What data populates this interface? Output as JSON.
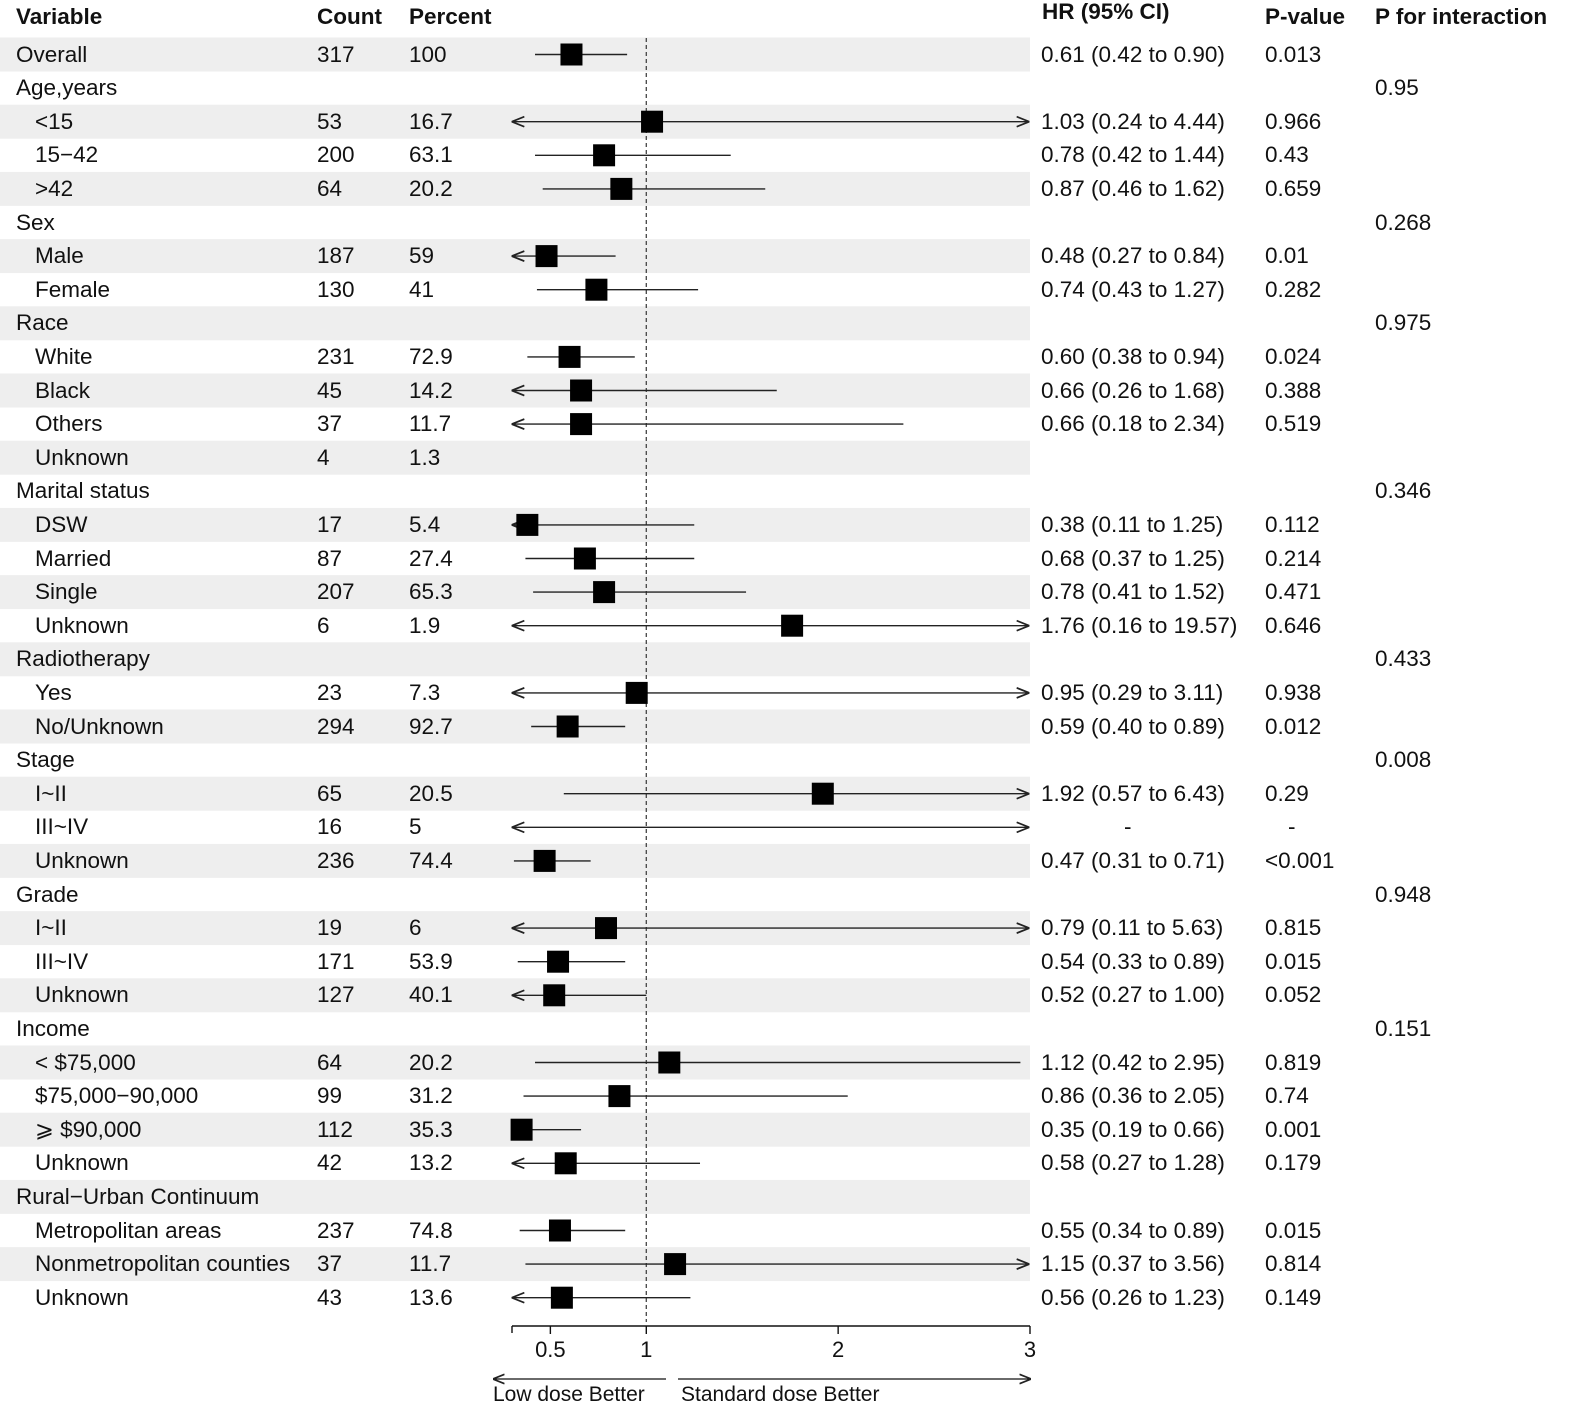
{
  "headers": {
    "variable": "Variable",
    "count": "Count",
    "percent": "Percent",
    "hr": "HR (95% CI)",
    "pvalue": "P-value",
    "pint": "P for interaction"
  },
  "rows": [
    {
      "label": "Overall",
      "indent": false,
      "count": "317",
      "percent": "100",
      "hr_text": "0.61 (0.42 to 0.90)",
      "p": "0.013",
      "pint": ""
    },
    {
      "label": "Age,years",
      "indent": false,
      "count": "",
      "percent": "",
      "hr_text": "",
      "p": "",
      "pint": "0.95"
    },
    {
      "label": "<15",
      "indent": true,
      "count": "53",
      "percent": "16.7",
      "hr_text": "1.03 (0.24 to 4.44)",
      "p": "0.966",
      "pint": ""
    },
    {
      "label": "15−42",
      "indent": true,
      "count": "200",
      "percent": "63.1",
      "hr_text": "0.78 (0.42 to 1.44)",
      "p": "0.43",
      "pint": ""
    },
    {
      "label": ">42",
      "indent": true,
      "count": "64",
      "percent": "20.2",
      "hr_text": "0.87 (0.46 to 1.62)",
      "p": "0.659",
      "pint": ""
    },
    {
      "label": "Sex",
      "indent": false,
      "count": "",
      "percent": "",
      "hr_text": "",
      "p": "",
      "pint": "0.268"
    },
    {
      "label": "Male",
      "indent": true,
      "count": "187",
      "percent": "59",
      "hr_text": "0.48 (0.27 to 0.84)",
      "p": "0.01",
      "pint": ""
    },
    {
      "label": "Female",
      "indent": true,
      "count": "130",
      "percent": "41",
      "hr_text": "0.74 (0.43 to 1.27)",
      "p": "0.282",
      "pint": ""
    },
    {
      "label": "Race",
      "indent": false,
      "count": "",
      "percent": "",
      "hr_text": "",
      "p": "",
      "pint": "0.975"
    },
    {
      "label": "White",
      "indent": true,
      "count": "231",
      "percent": "72.9",
      "hr_text": "0.60 (0.38 to 0.94)",
      "p": "0.024",
      "pint": ""
    },
    {
      "label": "Black",
      "indent": true,
      "count": "45",
      "percent": "14.2",
      "hr_text": "0.66 (0.26 to 1.68)",
      "p": "0.388",
      "pint": ""
    },
    {
      "label": "Others",
      "indent": true,
      "count": "37",
      "percent": "11.7",
      "hr_text": "0.66 (0.18 to 2.34)",
      "p": "0.519",
      "pint": ""
    },
    {
      "label": "Unknown",
      "indent": true,
      "count": "4",
      "percent": "1.3",
      "hr_text": "",
      "p": "",
      "pint": ""
    },
    {
      "label": "Marital status",
      "indent": false,
      "count": "",
      "percent": "",
      "hr_text": "",
      "p": "",
      "pint": "0.346"
    },
    {
      "label": "DSW",
      "indent": true,
      "count": "17",
      "percent": "5.4",
      "hr_text": "0.38 (0.11 to 1.25)",
      "p": "0.112",
      "pint": ""
    },
    {
      "label": "Married",
      "indent": true,
      "count": "87",
      "percent": "27.4",
      "hr_text": "0.68 (0.37 to 1.25)",
      "p": "0.214",
      "pint": ""
    },
    {
      "label": "Single",
      "indent": true,
      "count": "207",
      "percent": "65.3",
      "hr_text": "0.78 (0.41 to 1.52)",
      "p": "0.471",
      "pint": ""
    },
    {
      "label": "Unknown",
      "indent": true,
      "count": "6",
      "percent": "1.9",
      "hr_text": "1.76 (0.16 to 19.57)",
      "p": "0.646",
      "pint": ""
    },
    {
      "label": "Radiotherapy",
      "indent": false,
      "count": "",
      "percent": "",
      "hr_text": "",
      "p": "",
      "pint": "0.433"
    },
    {
      "label": "Yes",
      "indent": true,
      "count": "23",
      "percent": "7.3",
      "hr_text": "0.95 (0.29 to 3.11)",
      "p": "0.938",
      "pint": ""
    },
    {
      "label": "No/Unknown",
      "indent": true,
      "count": "294",
      "percent": "92.7",
      "hr_text": "0.59 (0.40 to 0.89)",
      "p": "0.012",
      "pint": ""
    },
    {
      "label": "Stage",
      "indent": false,
      "count": "",
      "percent": "",
      "hr_text": "",
      "p": "",
      "pint": "0.008"
    },
    {
      "label": "I~II",
      "indent": true,
      "count": "65",
      "percent": "20.5",
      "hr_text": "1.92 (0.57 to 6.43)",
      "p": "0.29",
      "pint": ""
    },
    {
      "label": "III~IV",
      "indent": true,
      "count": "16",
      "percent": "5",
      "hr_text": "-",
      "p": "-",
      "pint": ""
    },
    {
      "label": "Unknown",
      "indent": true,
      "count": "236",
      "percent": "74.4",
      "hr_text": "0.47 (0.31 to 0.71)",
      "p": "<0.001",
      "pint": ""
    },
    {
      "label": "Grade",
      "indent": false,
      "count": "",
      "percent": "",
      "hr_text": "",
      "p": "",
      "pint": "0.948"
    },
    {
      "label": "I~II",
      "indent": true,
      "count": "19",
      "percent": "6",
      "hr_text": "0.79 (0.11 to 5.63)",
      "p": "0.815",
      "pint": ""
    },
    {
      "label": "III~IV",
      "indent": true,
      "count": "171",
      "percent": "53.9",
      "hr_text": "0.54 (0.33 to 0.89)",
      "p": "0.015",
      "pint": ""
    },
    {
      "label": "Unknown",
      "indent": true,
      "count": "127",
      "percent": "40.1",
      "hr_text": "0.52 (0.27 to 1.00)",
      "p": "0.052",
      "pint": ""
    },
    {
      "label": "Income",
      "indent": false,
      "count": "",
      "percent": "",
      "hr_text": "",
      "p": "",
      "pint": "0.151"
    },
    {
      "label": "< $75,000",
      "indent": true,
      "count": "64",
      "percent": "20.2",
      "hr_text": "1.12 (0.42 to 2.95)",
      "p": "0.819",
      "pint": ""
    },
    {
      "label": "$75,000−90,000",
      "indent": true,
      "count": "99",
      "percent": "31.2",
      "hr_text": "0.86 (0.36 to 2.05)",
      "p": "0.74",
      "pint": ""
    },
    {
      "label": "⩾ $90,000",
      "indent": true,
      "count": "112",
      "percent": "35.3",
      "hr_text": "0.35 (0.19 to 0.66)",
      "p": "0.001",
      "pint": ""
    },
    {
      "label": "Unknown",
      "indent": true,
      "count": "42",
      "percent": "13.2",
      "hr_text": "0.58 (0.27 to 1.28)",
      "p": "0.179",
      "pint": ""
    },
    {
      "label": "Rural−Urban Continuum",
      "indent": false,
      "count": "",
      "percent": "",
      "hr_text": "",
      "p": "",
      "pint": ""
    },
    {
      "label": "Metropolitan areas",
      "indent": true,
      "count": "237",
      "percent": "74.8",
      "hr_text": "0.55 (0.34 to 0.89)",
      "p": "0.015",
      "pint": ""
    },
    {
      "label": "Nonmetropolitan counties",
      "indent": true,
      "count": "37",
      "percent": "11.7",
      "hr_text": "1.15 (0.37 to 3.56)",
      "p": "0.814",
      "pint": ""
    },
    {
      "label": "Unknown",
      "indent": true,
      "count": "43",
      "percent": "13.6",
      "hr_text": "0.56 (0.26 to 1.23)",
      "p": "0.149",
      "pint": ""
    }
  ],
  "chart_data": {
    "type": "forest",
    "xlim": [
      0.3,
      3
    ],
    "ticks": [
      0.5,
      1,
      2,
      3
    ],
    "tick_labels": [
      "0.5",
      "1",
      "2",
      "3"
    ],
    "reference_line": 1,
    "arrow_label_left": "Low dose Better",
    "arrow_label_right": "Standard dose Better",
    "points": [
      {
        "hr": 0.61,
        "low": 0.42,
        "high": 0.9
      },
      null,
      {
        "hr": 1.03,
        "low": 0.24,
        "high": 4.44
      },
      {
        "hr": 0.78,
        "low": 0.42,
        "high": 1.44
      },
      {
        "hr": 0.87,
        "low": 0.46,
        "high": 1.62
      },
      null,
      {
        "hr": 0.48,
        "low": 0.27,
        "high": 0.84
      },
      {
        "hr": 0.74,
        "low": 0.43,
        "high": 1.27
      },
      null,
      {
        "hr": 0.6,
        "low": 0.38,
        "high": 0.94
      },
      {
        "hr": 0.66,
        "low": 0.26,
        "high": 1.68
      },
      {
        "hr": 0.66,
        "low": 0.18,
        "high": 2.34
      },
      null,
      null,
      {
        "hr": 0.38,
        "low": 0.11,
        "high": 1.25
      },
      {
        "hr": 0.68,
        "low": 0.37,
        "high": 1.25
      },
      {
        "hr": 0.78,
        "low": 0.41,
        "high": 1.52
      },
      {
        "hr": 1.76,
        "low": 0.16,
        "high": 19.57
      },
      null,
      {
        "hr": 0.95,
        "low": 0.29,
        "high": 3.11
      },
      {
        "hr": 0.59,
        "low": 0.4,
        "high": 0.89
      },
      null,
      {
        "hr": 1.92,
        "low": 0.57,
        "high": 6.43
      },
      {
        "hr": null,
        "low": 0.0,
        "high": 99,
        "unbounded": true
      },
      {
        "hr": 0.47,
        "low": 0.31,
        "high": 0.71
      },
      null,
      {
        "hr": 0.79,
        "low": 0.11,
        "high": 5.63
      },
      {
        "hr": 0.54,
        "low": 0.33,
        "high": 0.89
      },
      {
        "hr": 0.52,
        "low": 0.27,
        "high": 1.0
      },
      null,
      {
        "hr": 1.12,
        "low": 0.42,
        "high": 2.95
      },
      {
        "hr": 0.86,
        "low": 0.36,
        "high": 2.05
      },
      {
        "hr": 0.35,
        "low": 0.19,
        "high": 0.66
      },
      {
        "hr": 0.58,
        "low": 0.27,
        "high": 1.28
      },
      null,
      {
        "hr": 0.55,
        "low": 0.34,
        "high": 0.89
      },
      {
        "hr": 1.15,
        "low": 0.37,
        "high": 3.56
      },
      {
        "hr": 0.56,
        "low": 0.26,
        "high": 1.23
      }
    ]
  },
  "colors": {
    "stripe": "#eeeeee",
    "ink": "#111111",
    "point": "#000000",
    "ci": "#222222",
    "refline": "#444444"
  }
}
